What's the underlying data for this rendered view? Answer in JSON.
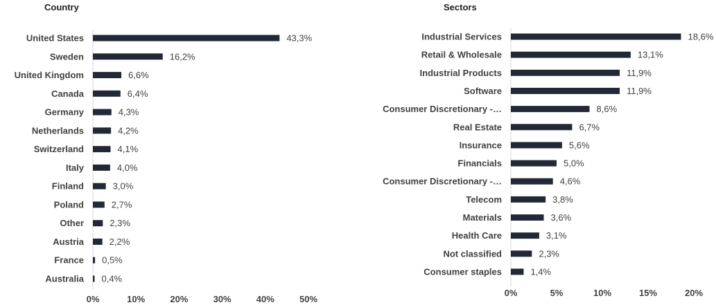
{
  "chart_data": [
    {
      "type": "bar",
      "orientation": "horizontal",
      "title": "Country",
      "categories": [
        "United States",
        "Sweden",
        "United Kingdom",
        "Canada",
        "Germany",
        "Netherlands",
        "Switzerland",
        "Italy",
        "Finland",
        "Poland",
        "Other",
        "Austria",
        "France",
        "Australia"
      ],
      "values": [
        43.3,
        16.2,
        6.6,
        6.4,
        4.3,
        4.2,
        4.1,
        4.0,
        3.0,
        2.7,
        2.3,
        2.2,
        0.5,
        0.4
      ],
      "data_labels": [
        "43,3%",
        "16,2%",
        "6,6%",
        "6,4%",
        "4,3%",
        "4,2%",
        "4,1%",
        "4,0%",
        "3,0%",
        "2,7%",
        "2,3%",
        "2,2%",
        "0,5%",
        "0,4%"
      ],
      "xlim": [
        0,
        50
      ],
      "ticks": [
        0,
        10,
        20,
        30,
        40,
        50
      ],
      "tick_labels": [
        "0%",
        "10%",
        "20%",
        "30%",
        "40%",
        "50%"
      ],
      "grid": false,
      "bar_color": "#222836"
    },
    {
      "type": "bar",
      "orientation": "horizontal",
      "title": "Sectors",
      "categories": [
        "Industrial Services",
        "Retail & Wholesale",
        "Industrial Products",
        "Software",
        "Consumer Discretionary -…",
        "Real Estate",
        "Insurance",
        "Financials",
        "Consumer Discretionary -…",
        "Telecom",
        "Materials",
        "Health Care",
        "Not classified",
        "Consumer staples"
      ],
      "values": [
        18.6,
        13.1,
        11.9,
        11.9,
        8.6,
        6.7,
        5.6,
        5.0,
        4.6,
        3.8,
        3.6,
        3.1,
        2.3,
        1.4
      ],
      "data_labels": [
        "18,6%",
        "13,1%",
        "11,9%",
        "11,9%",
        "8,6%",
        "6,7%",
        "5,6%",
        "5,0%",
        "4,6%",
        "3,8%",
        "3,6%",
        "3,1%",
        "2,3%",
        "1,4%"
      ],
      "xlim": [
        0,
        20
      ],
      "ticks": [
        0,
        5,
        10,
        15,
        20
      ],
      "tick_labels": [
        "0%",
        "5%",
        "10%",
        "15%",
        "20%"
      ],
      "grid": false,
      "bar_color": "#222836"
    }
  ]
}
